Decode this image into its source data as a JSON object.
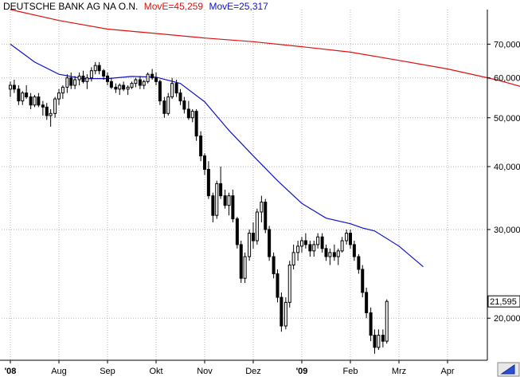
{
  "chart_data": {
    "type": "candlestick",
    "title": {
      "instrument": "DEUTSCHE BANK AG NA O.N.",
      "ma_long_label": "MovE=45,259",
      "ma_short_label": "MovE=25,317"
    },
    "scale": "log",
    "ylim": [
      16.5,
      82
    ],
    "y_ticks": [
      {
        "value": 20,
        "label": "20,000"
      },
      {
        "value": 30,
        "label": "30,000"
      },
      {
        "value": 40,
        "label": "40,000"
      },
      {
        "value": 50,
        "label": "50,000"
      },
      {
        "value": 60,
        "label": "60,000"
      },
      {
        "value": 70,
        "label": "70,000"
      }
    ],
    "last_price": {
      "value": 21.595,
      "label": "21,595"
    },
    "x_ticks": [
      "'08",
      "Aug",
      "Sep",
      "Okt",
      "Nov",
      "Dez",
      "'09",
      "Feb",
      "Mrz",
      "Apr"
    ],
    "grid": true,
    "colors": {
      "ma_long": "#dd1111",
      "ma_short": "#1111cc",
      "candle": "#000000",
      "price_box": "#ffffff"
    },
    "series": [
      {
        "name": "MovE=45,259",
        "role": "ma_long",
        "values": [
          {
            "x": 0,
            "y": 82
          },
          {
            "x": 1,
            "y": 78
          },
          {
            "x": 2,
            "y": 75
          },
          {
            "x": 3,
            "y": 73.5
          },
          {
            "x": 4,
            "y": 72
          },
          {
            "x": 5,
            "y": 70.8
          },
          {
            "x": 6,
            "y": 69.2
          },
          {
            "x": 7,
            "y": 67.5
          },
          {
            "x": 8,
            "y": 65
          },
          {
            "x": 9,
            "y": 62.5
          },
          {
            "x": 10,
            "y": 59.5
          },
          {
            "x": 11,
            "y": 56
          }
        ]
      },
      {
        "name": "MovE=25,317",
        "role": "ma_short",
        "values": [
          {
            "x": 0,
            "y": 70
          },
          {
            "x": 0.5,
            "y": 64.5
          },
          {
            "x": 1,
            "y": 61
          },
          {
            "x": 1.5,
            "y": 59.8
          },
          {
            "x": 2,
            "y": 59.8
          },
          {
            "x": 2.5,
            "y": 60.4
          },
          {
            "x": 3,
            "y": 60.2
          },
          {
            "x": 3.5,
            "y": 58.5
          },
          {
            "x": 4,
            "y": 53.8
          },
          {
            "x": 4.5,
            "y": 47.2
          },
          {
            "x": 5,
            "y": 42
          },
          {
            "x": 5.5,
            "y": 37.5
          },
          {
            "x": 6,
            "y": 33.8
          },
          {
            "x": 6.5,
            "y": 31.6
          },
          {
            "x": 7,
            "y": 30.8
          },
          {
            "x": 7.25,
            "y": 30.2
          },
          {
            "x": 7.5,
            "y": 29.8
          },
          {
            "x": 8,
            "y": 27.8
          },
          {
            "x": 8.5,
            "y": 25.3
          }
        ]
      },
      {
        "name": "price",
        "role": "candles",
        "ohlc": [
          [
            0.0,
            57.0,
            59.0,
            55.0,
            58.0
          ],
          [
            0.08,
            58.0,
            59.5,
            56.0,
            57.0
          ],
          [
            0.17,
            57.0,
            58.0,
            53.0,
            54.0
          ],
          [
            0.25,
            54.0,
            56.5,
            53.0,
            56.0
          ],
          [
            0.33,
            56.0,
            58.0,
            54.5,
            55.0
          ],
          [
            0.42,
            55.0,
            56.0,
            52.0,
            53.0
          ],
          [
            0.5,
            53.0,
            55.5,
            52.5,
            55.0
          ],
          [
            0.58,
            55.0,
            56.0,
            52.5,
            53.0
          ],
          [
            0.67,
            53.0,
            54.0,
            50.5,
            52.5
          ],
          [
            0.75,
            52.5,
            53.5,
            49.5,
            50.5
          ],
          [
            0.83,
            50.5,
            52.0,
            48.0,
            51.0
          ],
          [
            0.92,
            51.0,
            55.0,
            50.0,
            54.5
          ],
          [
            1.0,
            54.5,
            57.0,
            53.0,
            56.0
          ],
          [
            1.08,
            56.0,
            58.0,
            54.5,
            57.5
          ],
          [
            1.17,
            57.5,
            61.0,
            56.0,
            60.0
          ],
          [
            1.25,
            60.0,
            61.5,
            57.0,
            58.0
          ],
          [
            1.33,
            58.0,
            60.5,
            57.0,
            59.5
          ],
          [
            1.42,
            59.5,
            61.5,
            58.0,
            60.5
          ],
          [
            1.5,
            60.5,
            62.0,
            58.5,
            59.0
          ],
          [
            1.58,
            59.0,
            61.0,
            57.0,
            60.0
          ],
          [
            1.67,
            60.0,
            63.0,
            59.0,
            62.0
          ],
          [
            1.75,
            62.0,
            64.5,
            61.0,
            63.5
          ],
          [
            1.83,
            63.5,
            64.5,
            61.0,
            62.0
          ],
          [
            1.92,
            62.0,
            62.5,
            59.5,
            60.5
          ],
          [
            2.0,
            60.5,
            61.5,
            58.0,
            59.0
          ],
          [
            2.08,
            59.0,
            60.0,
            57.0,
            57.5
          ],
          [
            2.17,
            57.5,
            58.5,
            56.0,
            57.0
          ],
          [
            2.25,
            57.0,
            58.5,
            55.5,
            58.0
          ],
          [
            2.33,
            58.0,
            59.0,
            56.5,
            57.0
          ],
          [
            2.42,
            57.0,
            58.0,
            55.5,
            57.5
          ],
          [
            2.5,
            57.5,
            59.0,
            57.0,
            58.5
          ],
          [
            2.58,
            58.5,
            60.0,
            57.5,
            59.5
          ],
          [
            2.67,
            59.5,
            60.5,
            57.0,
            58.0
          ],
          [
            2.75,
            58.0,
            59.5,
            57.0,
            59.0
          ],
          [
            2.83,
            59.0,
            61.5,
            58.5,
            61.0
          ],
          [
            2.92,
            61.0,
            62.5,
            59.5,
            60.0
          ],
          [
            3.0,
            60.0,
            61.5,
            58.0,
            59.0
          ],
          [
            3.08,
            59.0,
            59.5,
            53.0,
            54.0
          ],
          [
            3.17,
            54.0,
            55.0,
            50.0,
            51.0
          ],
          [
            3.25,
            51.0,
            56.0,
            50.5,
            55.0
          ],
          [
            3.33,
            55.0,
            60.0,
            54.5,
            58.5
          ],
          [
            3.42,
            58.5,
            59.5,
            55.0,
            56.0
          ],
          [
            3.5,
            56.0,
            57.0,
            53.0,
            54.0
          ],
          [
            3.58,
            54.0,
            55.0,
            51.0,
            52.0
          ],
          [
            3.67,
            52.0,
            54.0,
            49.5,
            50.0
          ],
          [
            3.75,
            50.0,
            52.0,
            49.0,
            51.5
          ],
          [
            3.83,
            51.5,
            52.0,
            45.0,
            46.0
          ],
          [
            3.92,
            46.0,
            47.0,
            41.0,
            42.0
          ],
          [
            4.0,
            42.0,
            42.5,
            38.5,
            39.5
          ],
          [
            4.08,
            39.5,
            41.0,
            34.5,
            35.0
          ],
          [
            4.17,
            35.0,
            35.5,
            31.0,
            32.0
          ],
          [
            4.25,
            32.0,
            37.5,
            31.5,
            37.0
          ],
          [
            4.33,
            37.0,
            40.0,
            34.5,
            35.0
          ],
          [
            4.42,
            35.0,
            36.0,
            33.0,
            33.5
          ],
          [
            4.5,
            33.5,
            35.5,
            32.0,
            35.0
          ],
          [
            4.58,
            35.0,
            36.0,
            31.0,
            31.5
          ],
          [
            4.67,
            31.5,
            31.8,
            27.5,
            28.0
          ],
          [
            4.75,
            28.0,
            28.5,
            23.5,
            24.0
          ],
          [
            4.83,
            24.0,
            27.0,
            23.5,
            26.5
          ],
          [
            4.92,
            26.5,
            30.0,
            26.0,
            29.5
          ],
          [
            5.0,
            29.5,
            31.0,
            27.5,
            28.5
          ],
          [
            5.08,
            28.5,
            33.0,
            28.0,
            32.5
          ],
          [
            5.17,
            32.5,
            35.0,
            31.0,
            34.0
          ],
          [
            5.25,
            34.0,
            34.5,
            29.5,
            30.0
          ],
          [
            5.33,
            30.0,
            30.5,
            26.0,
            26.5
          ],
          [
            5.42,
            26.5,
            27.0,
            24.0,
            24.5
          ],
          [
            5.5,
            24.5,
            25.0,
            21.5,
            22.0
          ],
          [
            5.58,
            22.0,
            22.5,
            18.8,
            19.3
          ],
          [
            5.67,
            19.3,
            22.0,
            19.0,
            21.5
          ],
          [
            5.75,
            21.5,
            26.0,
            21.0,
            25.5
          ],
          [
            5.83,
            25.5,
            28.0,
            25.0,
            27.0
          ],
          [
            5.92,
            27.0,
            28.5,
            26.0,
            27.8
          ],
          [
            6.0,
            27.8,
            29.0,
            27.0,
            28.5
          ],
          [
            6.08,
            28.5,
            29.5,
            27.5,
            28.0
          ],
          [
            6.17,
            28.0,
            28.5,
            26.5,
            27.2
          ],
          [
            6.25,
            27.2,
            28.5,
            26.5,
            28.0
          ],
          [
            6.33,
            28.0,
            29.5,
            27.5,
            29.0
          ],
          [
            6.42,
            29.0,
            29.5,
            27.0,
            27.5
          ],
          [
            6.5,
            27.5,
            28.0,
            26.0,
            26.5
          ],
          [
            6.58,
            26.5,
            27.5,
            25.5,
            27.0
          ],
          [
            6.67,
            27.0,
            28.0,
            26.0,
            26.5
          ],
          [
            6.75,
            26.5,
            27.5,
            25.5,
            27.2
          ],
          [
            6.83,
            27.2,
            29.0,
            27.0,
            28.5
          ],
          [
            6.92,
            28.5,
            30.0,
            28.0,
            29.5
          ],
          [
            7.0,
            29.5,
            30.0,
            27.5,
            28.0
          ],
          [
            7.08,
            28.0,
            28.5,
            26.0,
            26.5
          ],
          [
            7.17,
            26.5,
            26.8,
            24.5,
            25.0
          ],
          [
            7.25,
            25.0,
            25.5,
            22.0,
            22.5
          ],
          [
            7.33,
            22.5,
            23.0,
            20.0,
            20.5
          ],
          [
            7.42,
            20.5,
            21.0,
            18.0,
            18.5
          ],
          [
            7.5,
            18.5,
            19.0,
            17.0,
            17.5
          ],
          [
            7.58,
            17.5,
            19.0,
            17.3,
            18.5
          ],
          [
            7.67,
            18.5,
            19.0,
            17.5,
            18.0
          ],
          [
            7.75,
            18.0,
            21.8,
            17.8,
            21.595
          ]
        ]
      }
    ]
  }
}
